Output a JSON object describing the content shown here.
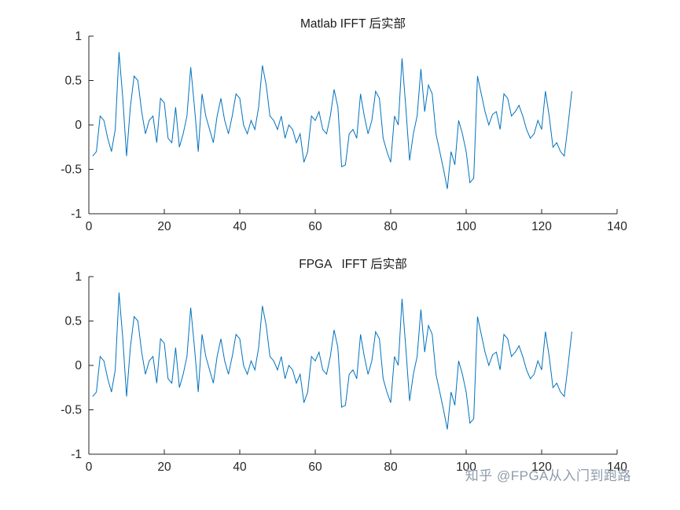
{
  "watermark": {
    "text": "知乎 @FPGA从入门到跑路",
    "color": "#8e9bab"
  },
  "chart_data": [
    {
      "type": "line",
      "title": "Matlab IFFT 后实部",
      "xlabel": "",
      "ylabel": "",
      "xlim": [
        0,
        140
      ],
      "ylim": [
        -1,
        1
      ],
      "xticks": [
        0,
        20,
        40,
        60,
        80,
        100,
        120,
        140
      ],
      "yticks": [
        -1,
        -0.5,
        0,
        0.5,
        1
      ],
      "grid": false,
      "legend": null,
      "line_color": "#0072BD",
      "axis_color": "#262626",
      "x_start": 1,
      "x_step": 1,
      "values": [
        -0.35,
        -0.3,
        0.1,
        0.05,
        -0.15,
        -0.3,
        -0.05,
        0.82,
        0.3,
        -0.35,
        0.2,
        0.55,
        0.5,
        0.15,
        -0.1,
        0.05,
        0.1,
        -0.2,
        0.3,
        0.25,
        -0.15,
        -0.2,
        0.2,
        -0.25,
        -0.1,
        0.1,
        0.65,
        0.2,
        -0.3,
        0.35,
        0.1,
        -0.05,
        -0.2,
        0.1,
        0.3,
        0.05,
        -0.1,
        0.1,
        0.35,
        0.3,
        0.0,
        -0.1,
        0.05,
        -0.05,
        0.2,
        0.67,
        0.45,
        0.1,
        0.05,
        -0.05,
        0.1,
        -0.15,
        0.0,
        -0.05,
        -0.2,
        -0.1,
        -0.42,
        -0.3,
        0.1,
        0.05,
        0.15,
        -0.05,
        -0.1,
        0.1,
        0.4,
        0.2,
        -0.47,
        -0.45,
        -0.1,
        -0.05,
        -0.15,
        0.35,
        0.1,
        -0.1,
        0.05,
        0.38,
        0.3,
        -0.15,
        -0.3,
        -0.42,
        0.1,
        0.0,
        0.75,
        0.2,
        -0.4,
        -0.1,
        0.1,
        0.63,
        0.15,
        0.45,
        0.35,
        -0.1,
        -0.3,
        -0.5,
        -0.72,
        -0.3,
        -0.45,
        0.05,
        -0.1,
        -0.3,
        -0.65,
        -0.6,
        0.55,
        0.35,
        0.15,
        0.0,
        0.12,
        0.15,
        -0.05,
        0.35,
        0.3,
        0.1,
        0.15,
        0.22,
        0.1,
        -0.05,
        -0.15,
        -0.1,
        0.05,
        -0.05,
        0.38,
        0.1,
        -0.25,
        -0.2,
        -0.3,
        -0.35,
        0.0,
        0.38
      ]
    },
    {
      "type": "line",
      "title": "FPGA   IFFT 后实部",
      "xlabel": "",
      "ylabel": "",
      "xlim": [
        0,
        140
      ],
      "ylim": [
        -1,
        1
      ],
      "xticks": [
        0,
        20,
        40,
        60,
        80,
        100,
        120,
        140
      ],
      "yticks": [
        -1,
        -0.5,
        0,
        0.5,
        1
      ],
      "grid": false,
      "legend": null,
      "line_color": "#0072BD",
      "axis_color": "#262626",
      "x_start": 1,
      "x_step": 1,
      "values": [
        -0.35,
        -0.3,
        0.1,
        0.05,
        -0.15,
        -0.3,
        -0.05,
        0.82,
        0.3,
        -0.35,
        0.2,
        0.55,
        0.5,
        0.15,
        -0.1,
        0.05,
        0.1,
        -0.2,
        0.3,
        0.25,
        -0.15,
        -0.2,
        0.2,
        -0.25,
        -0.1,
        0.1,
        0.65,
        0.2,
        -0.3,
        0.35,
        0.1,
        -0.05,
        -0.2,
        0.1,
        0.3,
        0.05,
        -0.1,
        0.1,
        0.35,
        0.3,
        0.0,
        -0.1,
        0.05,
        -0.05,
        0.2,
        0.67,
        0.45,
        0.1,
        0.05,
        -0.05,
        0.1,
        -0.15,
        0.0,
        -0.05,
        -0.2,
        -0.1,
        -0.42,
        -0.3,
        0.1,
        0.05,
        0.15,
        -0.05,
        -0.1,
        0.1,
        0.4,
        0.2,
        -0.47,
        -0.45,
        -0.1,
        -0.05,
        -0.15,
        0.35,
        0.1,
        -0.1,
        0.05,
        0.38,
        0.3,
        -0.15,
        -0.3,
        -0.42,
        0.1,
        0.0,
        0.75,
        0.2,
        -0.4,
        -0.1,
        0.1,
        0.63,
        0.15,
        0.45,
        0.35,
        -0.1,
        -0.3,
        -0.5,
        -0.72,
        -0.3,
        -0.45,
        0.05,
        -0.1,
        -0.3,
        -0.65,
        -0.6,
        0.55,
        0.35,
        0.15,
        0.0,
        0.12,
        0.15,
        -0.05,
        0.35,
        0.3,
        0.1,
        0.15,
        0.22,
        0.1,
        -0.05,
        -0.15,
        -0.1,
        0.05,
        -0.05,
        0.38,
        0.1,
        -0.25,
        -0.2,
        -0.3,
        -0.35,
        0.0,
        0.38
      ]
    }
  ]
}
